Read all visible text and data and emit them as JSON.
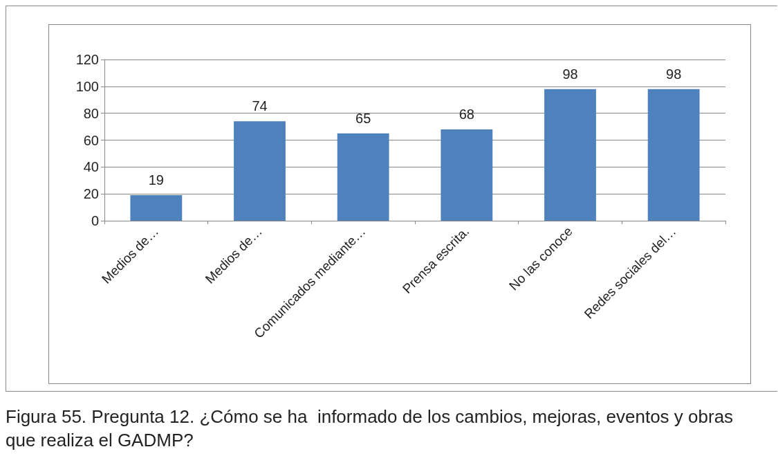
{
  "chart_data": {
    "type": "bar",
    "categories": [
      "Medios de…",
      "Medios de…",
      "Comunicados mediante…",
      "Prensa escrita.",
      "No las conoce",
      "Redes sociales del…"
    ],
    "values": [
      19,
      74,
      65,
      68,
      98,
      98
    ],
    "color": "#4f81bd",
    "ylim": [
      0,
      120
    ],
    "yticks": [
      0,
      20,
      40,
      60,
      80,
      100,
      120
    ],
    "grid": "y",
    "data_labels": true,
    "annotations": [
      "Figura 55. Pregunta 12. ¿Cómo se ha  informado de los cambios, mejoras, eventos y obras que realiza el GADMP?"
    ]
  }
}
